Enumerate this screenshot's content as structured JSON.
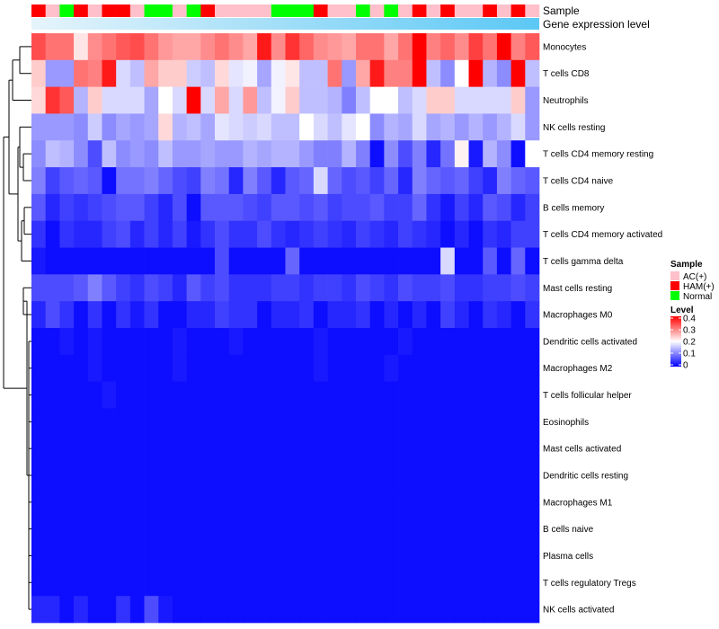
{
  "chart_data": {
    "type": "heatmap",
    "title": "",
    "annotation_labels": [
      "Sample",
      "Gene expression level"
    ],
    "rows": [
      "Monocytes",
      "T cells CD8",
      "Neutrophils",
      "NK cells resting",
      "T cells CD4 memory resting",
      "T cells CD4 naive",
      "B cells memory",
      "T cells CD4 memory activated",
      "T cells gamma delta",
      "Mast cells resting",
      "Macrophages M0",
      "Dendritic cells activated",
      "Macrophages M2",
      "T cells follicular helper",
      "Eosinophils",
      "Mast cells activated",
      "Dendritic cells resting",
      "Macrophages M1",
      "B cells naive",
      "Plasma cells",
      "T cells regulatory  Tregs",
      "NK cells activated"
    ],
    "sample_groups": [
      "HAM(+)",
      "AC(+)",
      "Normal",
      "HAM(+)",
      "AC(+)",
      "HAM(+)",
      "HAM(+)",
      "AC(+)",
      "Normal",
      "Normal",
      "AC(+)",
      "Normal",
      "HAM(+)",
      "AC(+)",
      "AC(+)",
      "AC(+)",
      "AC(+)",
      "Normal",
      "Normal",
      "Normal",
      "HAM(+)",
      "AC(+)",
      "AC(+)",
      "Normal",
      "AC(+)",
      "Normal",
      "AC(+)",
      "HAM(+)",
      "AC(+)",
      "HAM(+)",
      "AC(+)",
      "AC(+)",
      "HAM(+)",
      "AC(+)",
      "HAM(+)",
      "AC(+)"
    ],
    "values": [
      [
        0.34,
        0.31,
        0.31,
        0.22,
        0.29,
        0.31,
        0.33,
        0.34,
        0.31,
        0.28,
        0.27,
        0.27,
        0.29,
        0.31,
        0.29,
        0.27,
        0.38,
        0.29,
        0.36,
        0.32,
        0.29,
        0.28,
        0.27,
        0.31,
        0.31,
        0.27,
        0.31,
        0.4,
        0.3,
        0.32,
        0.29,
        0.35,
        0.31,
        0.4,
        0.3,
        0.33
      ],
      [
        0.24,
        0.12,
        0.12,
        0.31,
        0.3,
        0.38,
        0.17,
        0.15,
        0.27,
        0.24,
        0.24,
        0.16,
        0.15,
        0.23,
        0.18,
        0.19,
        0.13,
        0.19,
        0.22,
        0.15,
        0.15,
        0.31,
        0.12,
        0.27,
        0.38,
        0.3,
        0.3,
        0.4,
        0.15,
        0.11,
        0.2,
        0.4,
        0.14,
        0.11,
        0.4,
        0.15
      ],
      [
        0.23,
        0.36,
        0.33,
        0.14,
        0.24,
        0.17,
        0.17,
        0.17,
        0.13,
        0.2,
        0.17,
        0.4,
        0.17,
        0.27,
        0.17,
        0.28,
        0.15,
        0.19,
        0.24,
        0.15,
        0.15,
        0.14,
        0.1,
        0.15,
        0.2,
        0.2,
        0.15,
        0.17,
        0.24,
        0.24,
        0.17,
        0.17,
        0.17,
        0.17,
        0.24,
        0.12
      ],
      [
        0.12,
        0.12,
        0.12,
        0.11,
        0.16,
        0.11,
        0.13,
        0.12,
        0.13,
        0.23,
        0.14,
        0.15,
        0.13,
        0.18,
        0.17,
        0.16,
        0.17,
        0.15,
        0.15,
        0.2,
        0.17,
        0.15,
        0.18,
        0.2,
        0.11,
        0.14,
        0.13,
        0.17,
        0.13,
        0.14,
        0.12,
        0.14,
        0.12,
        0.14,
        0.17,
        0.12
      ],
      [
        0.11,
        0.15,
        0.14,
        0.11,
        0.06,
        0.15,
        0.11,
        0.12,
        0.11,
        0.15,
        0.12,
        0.12,
        0.13,
        0.12,
        0.12,
        0.14,
        0.13,
        0.14,
        0.14,
        0.12,
        0.1,
        0.1,
        0.14,
        0.1,
        0.01,
        0.11,
        0.06,
        0.1,
        0.03,
        0.09,
        0.21,
        0.02,
        0.14,
        0.11,
        0.01,
        0.2
      ],
      [
        0.1,
        0.05,
        0.07,
        0.08,
        0.07,
        0.01,
        0.09,
        0.09,
        0.1,
        0.08,
        0.06,
        0.05,
        0.1,
        0.09,
        0.03,
        0.1,
        0.07,
        0.03,
        0.07,
        0.08,
        0.17,
        0.08,
        0.06,
        0.07,
        0.05,
        0.08,
        0.03,
        0.1,
        0.08,
        0.07,
        0.08,
        0.05,
        0.03,
        0.1,
        0.08,
        0.07
      ],
      [
        0.07,
        0.03,
        0.05,
        0.04,
        0.05,
        0.06,
        0.07,
        0.07,
        0.05,
        0.03,
        0.06,
        0.01,
        0.07,
        0.07,
        0.07,
        0.06,
        0.05,
        0.07,
        0.07,
        0.06,
        0.07,
        0.05,
        0.06,
        0.06,
        0.07,
        0.05,
        0.05,
        0.08,
        0.04,
        0.02,
        0.05,
        0.03,
        0.07,
        0.06,
        0.03,
        0.05
      ],
      [
        0.04,
        0.01,
        0.04,
        0.03,
        0.03,
        0.05,
        0.06,
        0.03,
        0.05,
        0.03,
        0.05,
        0.02,
        0.04,
        0.06,
        0.04,
        0.04,
        0.06,
        0.04,
        0.03,
        0.04,
        0.05,
        0.04,
        0.03,
        0.05,
        0.04,
        0.03,
        0.05,
        0.04,
        0.03,
        0.01,
        0.03,
        0.01,
        0.04,
        0.03,
        0.05,
        0.05
      ],
      [
        0.02,
        0.01,
        0.01,
        0.01,
        0.01,
        0.01,
        0.01,
        0.01,
        0.01,
        0.01,
        0.01,
        0.01,
        0.01,
        0.06,
        0.01,
        0.01,
        0.01,
        0.01,
        0.08,
        0.01,
        0.01,
        0.01,
        0.01,
        0.01,
        0.01,
        0.01,
        0.01,
        0.01,
        0.01,
        0.17,
        0.01,
        0.01,
        0.07,
        0.01,
        0.08,
        0.01
      ],
      [
        0.06,
        0.06,
        0.06,
        0.07,
        0.1,
        0.07,
        0.05,
        0.04,
        0.06,
        0.05,
        0.03,
        0.07,
        0.05,
        0.06,
        0.04,
        0.04,
        0.04,
        0.05,
        0.05,
        0.04,
        0.05,
        0.05,
        0.04,
        0.06,
        0.05,
        0.04,
        0.06,
        0.05,
        0.05,
        0.06,
        0.04,
        0.04,
        0.05,
        0.05,
        0.06,
        0.05
      ],
      [
        0.03,
        0.06,
        0.04,
        0.01,
        0.04,
        0.01,
        0.04,
        0.02,
        0.04,
        0.01,
        0.01,
        0.03,
        0.03,
        0.05,
        0.04,
        0.04,
        0.01,
        0.03,
        0.03,
        0.04,
        0.01,
        0.03,
        0.03,
        0.04,
        0.01,
        0.03,
        0.01,
        0.03,
        0.01,
        0.05,
        0.03,
        0.01,
        0.04,
        0.03,
        0.01,
        0.04
      ],
      [
        0.01,
        0.01,
        0.02,
        0.01,
        0.02,
        0.01,
        0.01,
        0.01,
        0.01,
        0.01,
        0.02,
        0.01,
        0.01,
        0.01,
        0.02,
        0.01,
        0.01,
        0.01,
        0.01,
        0.01,
        0.02,
        0.01,
        0.01,
        0.01,
        0.01,
        0.01,
        0.02,
        0.01,
        0.01,
        0.01,
        0.01,
        0.01,
        0.01,
        0.01,
        0.01,
        0.01
      ],
      [
        0.01,
        0.01,
        0.01,
        0.01,
        0.02,
        0.01,
        0.01,
        0.01,
        0.01,
        0.01,
        0.02,
        0.01,
        0.01,
        0.01,
        0.01,
        0.01,
        0.01,
        0.01,
        0.01,
        0.01,
        0.02,
        0.01,
        0.01,
        0.01,
        0.01,
        0.02,
        0.01,
        0.01,
        0.01,
        0.01,
        0.01,
        0.01,
        0.01,
        0.01,
        0.01,
        0.01
      ],
      [
        0.01,
        0.01,
        0.01,
        0.01,
        0.01,
        0.02,
        0.01,
        0.01,
        0.01,
        0.01,
        0.01,
        0.01,
        0.01,
        0.01,
        0.01,
        0.01,
        0.01,
        0.01,
        0.01,
        0.01,
        0.01,
        0.01,
        0.01,
        0.01,
        0.01,
        0.01,
        0.01,
        0.01,
        0.01,
        0.01,
        0.01,
        0.01,
        0.01,
        0.01,
        0.01,
        0.01
      ],
      [
        0.01,
        0.01,
        0.01,
        0.01,
        0.01,
        0.01,
        0.01,
        0.01,
        0.01,
        0.01,
        0.01,
        0.01,
        0.01,
        0.01,
        0.01,
        0.01,
        0.01,
        0.01,
        0.01,
        0.01,
        0.01,
        0.01,
        0.01,
        0.01,
        0.01,
        0.01,
        0.01,
        0.01,
        0.01,
        0.01,
        0.01,
        0.01,
        0.01,
        0.01,
        0.01,
        0.01
      ],
      [
        0.01,
        0.01,
        0.01,
        0.01,
        0.01,
        0.01,
        0.01,
        0.01,
        0.01,
        0.01,
        0.01,
        0.01,
        0.01,
        0.01,
        0.01,
        0.01,
        0.01,
        0.01,
        0.01,
        0.01,
        0.01,
        0.01,
        0.01,
        0.01,
        0.01,
        0.01,
        0.01,
        0.01,
        0.01,
        0.01,
        0.01,
        0.01,
        0.01,
        0.01,
        0.01,
        0.01
      ],
      [
        0.01,
        0.01,
        0.01,
        0.01,
        0.01,
        0.01,
        0.01,
        0.01,
        0.01,
        0.01,
        0.01,
        0.01,
        0.01,
        0.01,
        0.01,
        0.01,
        0.01,
        0.01,
        0.01,
        0.01,
        0.01,
        0.01,
        0.01,
        0.01,
        0.01,
        0.01,
        0.01,
        0.01,
        0.01,
        0.01,
        0.01,
        0.01,
        0.01,
        0.01,
        0.01,
        0.01
      ],
      [
        0.01,
        0.01,
        0.01,
        0.01,
        0.01,
        0.01,
        0.01,
        0.01,
        0.01,
        0.01,
        0.01,
        0.01,
        0.01,
        0.01,
        0.01,
        0.01,
        0.01,
        0.01,
        0.01,
        0.01,
        0.01,
        0.01,
        0.01,
        0.01,
        0.01,
        0.01,
        0.01,
        0.01,
        0.01,
        0.01,
        0.01,
        0.01,
        0.01,
        0.01,
        0.01,
        0.01
      ],
      [
        0.01,
        0.01,
        0.01,
        0.01,
        0.01,
        0.01,
        0.01,
        0.01,
        0.01,
        0.01,
        0.01,
        0.01,
        0.01,
        0.01,
        0.01,
        0.01,
        0.01,
        0.01,
        0.01,
        0.01,
        0.01,
        0.01,
        0.01,
        0.01,
        0.01,
        0.01,
        0.01,
        0.01,
        0.01,
        0.01,
        0.01,
        0.01,
        0.01,
        0.01,
        0.01,
        0.01
      ],
      [
        0.01,
        0.01,
        0.01,
        0.01,
        0.01,
        0.01,
        0.01,
        0.01,
        0.01,
        0.01,
        0.01,
        0.01,
        0.01,
        0.01,
        0.01,
        0.01,
        0.01,
        0.01,
        0.01,
        0.01,
        0.01,
        0.01,
        0.01,
        0.01,
        0.01,
        0.01,
        0.01,
        0.01,
        0.01,
        0.01,
        0.01,
        0.01,
        0.01,
        0.01,
        0.01,
        0.01
      ],
      [
        0.01,
        0.01,
        0.01,
        0.01,
        0.01,
        0.01,
        0.01,
        0.01,
        0.01,
        0.01,
        0.01,
        0.01,
        0.01,
        0.01,
        0.01,
        0.01,
        0.01,
        0.01,
        0.01,
        0.01,
        0.01,
        0.01,
        0.01,
        0.01,
        0.01,
        0.01,
        0.01,
        0.01,
        0.01,
        0.01,
        0.01,
        0.01,
        0.01,
        0.01,
        0.01,
        0.01
      ],
      [
        0.03,
        0.03,
        0.01,
        0.03,
        0.01,
        0.01,
        0.04,
        0.01,
        0.06,
        0.02,
        0.01,
        0.01,
        0.01,
        0.01,
        0.01,
        0.01,
        0.01,
        0.01,
        0.01,
        0.01,
        0.01,
        0.01,
        0.01,
        0.01,
        0.01,
        0.01,
        0.01,
        0.01,
        0.01,
        0.01,
        0.01,
        0.01,
        0.01,
        0.01,
        0.01,
        0.01
      ]
    ],
    "color_scale": {
      "min": 0,
      "max": 0.4,
      "colors": [
        "#0000ff",
        "#ffffff",
        "#ff0000"
      ]
    },
    "group_colors": {
      "AC(+)": "#ffc0cb",
      "HAM(+)": "#ff0000",
      "Normal": "#00ff00"
    },
    "expression_bar_color": "#5bc8f5",
    "legend": {
      "sample_title": "Sample",
      "sample_items": [
        "AC(+)",
        "HAM(+)",
        "Normal"
      ],
      "level_title": "Level",
      "level_ticks": [
        "0.4",
        "0.3",
        "0.2",
        "0.1",
        "0"
      ]
    }
  }
}
